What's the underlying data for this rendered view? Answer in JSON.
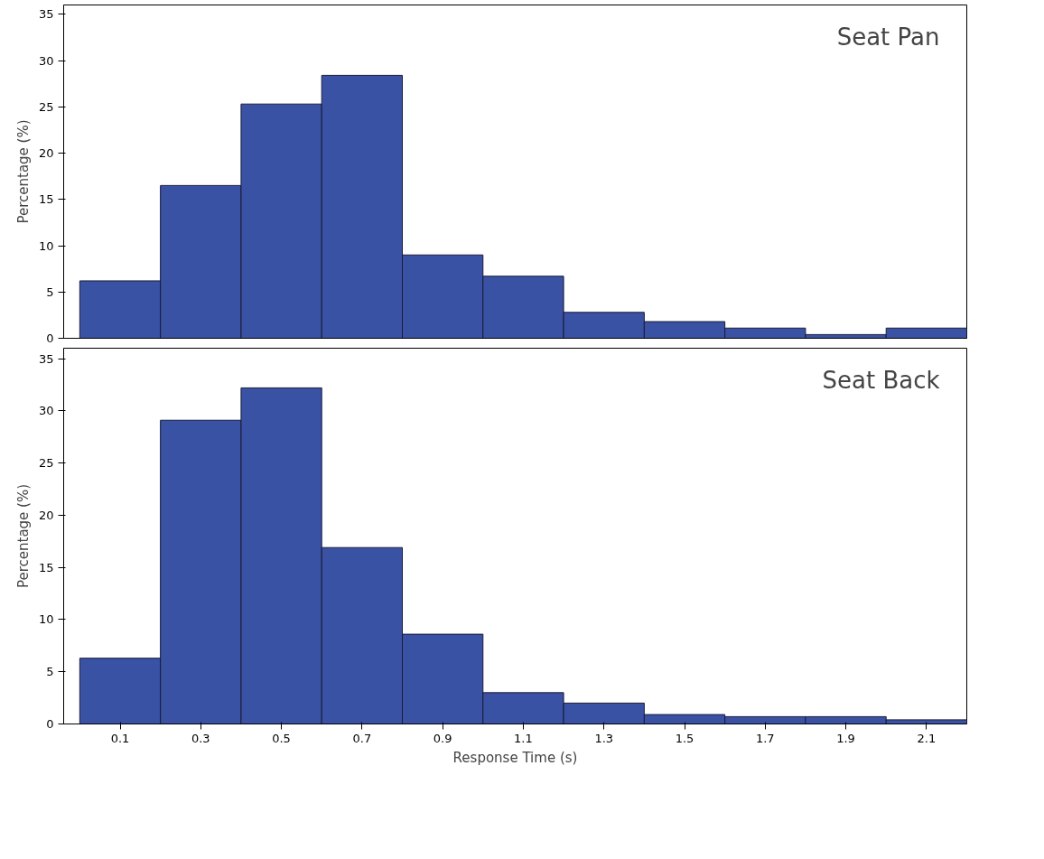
{
  "chart_data": [
    {
      "type": "histogram",
      "title": "Seat Pan",
      "ylabel": "Percentage (%)",
      "color": "#3a52a3",
      "bins": [
        0,
        0.2,
        0.4,
        0.6,
        0.8,
        1.0,
        1.2,
        1.4,
        1.6,
        1.8,
        2.0,
        2.2
      ],
      "values": [
        6.2,
        16.5,
        25.3,
        28.4,
        9.0,
        6.7,
        2.8,
        1.8,
        1.1,
        0.4,
        1.1
      ],
      "xlim": [
        -0.04,
        2.2
      ],
      "xticks": [
        0.1,
        0.3,
        0.5,
        0.7,
        0.9,
        1.1,
        1.3,
        1.5,
        1.7,
        1.9,
        2.1
      ],
      "ylim": [
        0,
        36
      ],
      "yticks": [
        0,
        5,
        10,
        15,
        20,
        25,
        30,
        35
      ],
      "tick_labels": "y",
      "grid": false
    },
    {
      "type": "histogram",
      "title": "Seat Back",
      "ylabel": "Percentage (%)",
      "xlabel": "Response Time (s)",
      "color": "#3a52a3",
      "bins": [
        0,
        0.2,
        0.4,
        0.6,
        0.8,
        1.0,
        1.2,
        1.4,
        1.6,
        1.8,
        2.0,
        2.2
      ],
      "values": [
        6.3,
        29.1,
        32.2,
        16.9,
        8.6,
        3.0,
        2.0,
        0.9,
        0.7,
        0.7,
        0.4
      ],
      "xlim": [
        -0.04,
        2.2
      ],
      "xticks": [
        0.1,
        0.3,
        0.5,
        0.7,
        0.9,
        1.1,
        1.3,
        1.5,
        1.7,
        1.9,
        2.1
      ],
      "ylim": [
        0,
        36
      ],
      "yticks": [
        0,
        5,
        10,
        15,
        20,
        25,
        30,
        35
      ],
      "grid": false
    }
  ]
}
